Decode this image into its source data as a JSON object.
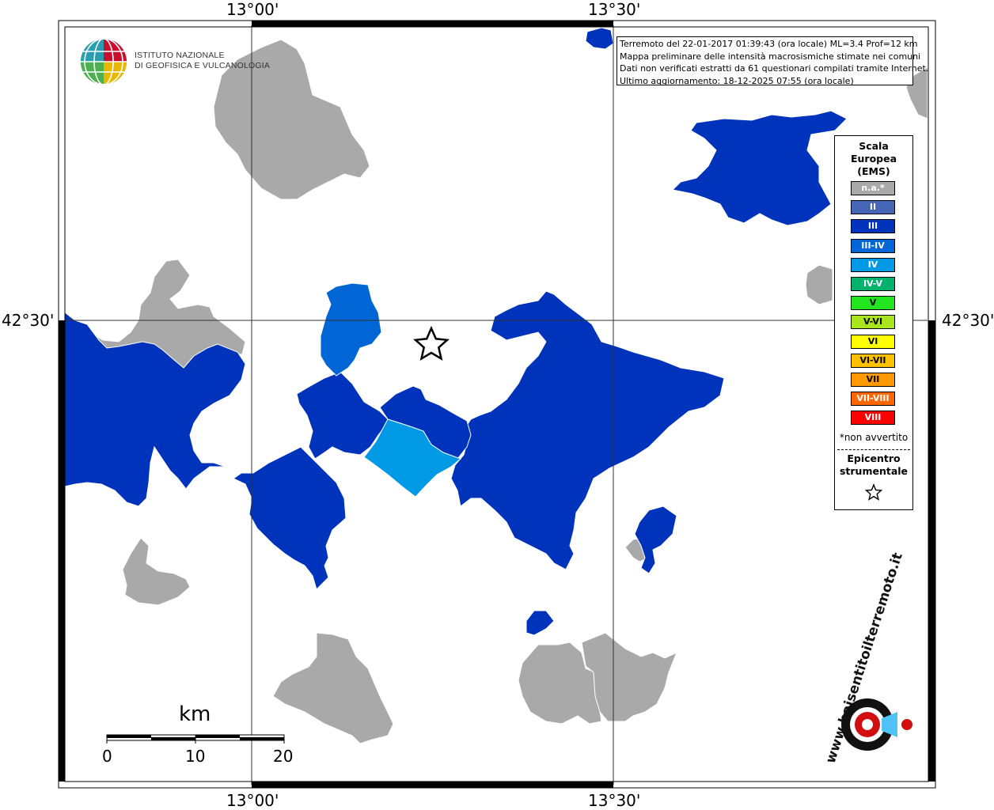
{
  "map": {
    "graticule": {
      "lon_labels": [
        "13°00'",
        "13°30'"
      ],
      "lat_labels": [
        "42°30'"
      ]
    },
    "header": {
      "line1": "Terremoto del 22-01-2017 01:39:43 (ora locale) ML=3.4 Prof=12 km",
      "line2": "Mappa preliminare delle intensità macrosismiche stimate nei comuni",
      "line3": "Dati non verificati estratti da 61 questionari compilati tramite Internet.",
      "line4": "Ultimo aggiornamento: 18-12-2025 07:55 (ora locale)"
    },
    "logo": {
      "line1": "ISTITUTO NAZIONALE",
      "line2": "DI GEOFISICA E VULCANOLOGIA"
    },
    "legend": {
      "title1": "Scala",
      "title2": "Europea",
      "title3": "(EMS)",
      "classes": [
        {
          "label": "n.a.*",
          "color": "#a9a9a9"
        },
        {
          "label": "II",
          "color": "#4466b5"
        },
        {
          "label": "III",
          "color": "#0033bb"
        },
        {
          "label": "III-IV",
          "color": "#0066d5"
        },
        {
          "label": "IV",
          "color": "#0099e6"
        },
        {
          "label": "IV-V",
          "color": "#00b26b"
        },
        {
          "label": "V",
          "color": "#22e51f"
        },
        {
          "label": "V-VI",
          "color": "#a8e51f"
        },
        {
          "label": "VI",
          "color": "#ffff00"
        },
        {
          "label": "VI-VII",
          "color": "#ffc000"
        },
        {
          "label": "VII",
          "color": "#ff9900"
        },
        {
          "label": "VII-VIII",
          "color": "#ff6600"
        },
        {
          "label": "VIII",
          "color": "#ff0000"
        }
      ],
      "not_felt_note": "*non avvertito",
      "epicenter1": "Epicentro",
      "epicenter2": "strumentale"
    },
    "scale_bar": {
      "unit": "km",
      "ticks": [
        "0",
        "10",
        "20"
      ]
    },
    "watermark": "www.haisentitoilterremoto.it"
  }
}
